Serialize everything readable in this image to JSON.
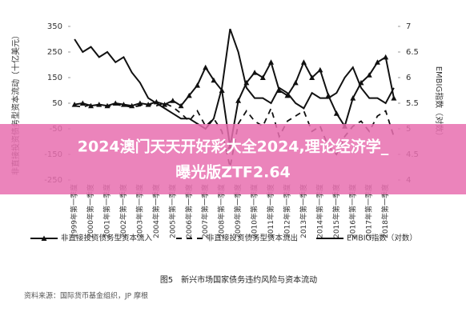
{
  "chart_data": {
    "type": "line",
    "y_label": "非直接投资债务型资本流动（十亿美元）",
    "y2_label": "EMBIG指数（对数）",
    "categories": [
      "1999年第一季度",
      null,
      "2000年第一季度",
      null,
      "2001年第一季度",
      null,
      "2002年第一季度",
      null,
      "2003年第一季度",
      null,
      "2004年第一季度",
      null,
      "2005年第一季度",
      null,
      "2006年第一季度",
      null,
      "2007年第一季度",
      null,
      "2008年第一季度",
      null,
      "2009年第一季度",
      null,
      "2010年第一季度",
      null,
      "2011年第一季度",
      null,
      "2012年第一季度",
      null,
      "2013年第一季度",
      null,
      "2014年第一季度",
      null,
      "2015年第一季度",
      null,
      "2016年第一季度",
      null,
      "2017年第一季度",
      null,
      "2018年第一季度",
      null
    ],
    "ylim": [
      -250,
      350
    ],
    "yticks": [
      -250,
      -150,
      -50,
      50,
      150,
      250,
      350
    ],
    "y2lim": [
      4,
      7
    ],
    "y2ticks": [
      4,
      4.5,
      5,
      5.5,
      6,
      6.5,
      7
    ],
    "legend": "bottom",
    "series": [
      {
        "name": "非直接投资债务型资本流入",
        "color": "#111111",
        "marker": "triangle",
        "values": [
          45,
          50,
          40,
          45,
          40,
          50,
          45,
          40,
          50,
          45,
          55,
          45,
          60,
          40,
          80,
          120,
          190,
          140,
          100,
          -120,
          60,
          130,
          170,
          150,
          210,
          100,
          80,
          130,
          210,
          150,
          180,
          80,
          10,
          -40,
          70,
          130,
          160,
          210,
          230,
          70
        ]
      },
      {
        "name": "非直接投资债务型资本流出",
        "color": "#111111",
        "dash": true,
        "values": [
          40,
          35,
          45,
          40,
          35,
          45,
          40,
          35,
          40,
          45,
          40,
          50,
          35,
          10,
          -20,
          20,
          -40,
          -10,
          -60,
          -200,
          -30,
          20,
          -20,
          -40,
          30,
          -80,
          -20,
          0,
          20,
          -60,
          -40,
          -120,
          -150,
          -80,
          -40,
          -20,
          -60,
          0,
          20,
          -80
        ]
      },
      {
        "name": "EMBIG指数（对数）",
        "color": "#111111",
        "axis": "y2",
        "values": [
          6.75,
          6.5,
          6.6,
          6.4,
          6.5,
          6.3,
          6.4,
          6.1,
          5.9,
          5.6,
          5.5,
          5.4,
          5.3,
          5.2,
          5.2,
          5.1,
          5.0,
          5.2,
          5.8,
          6.95,
          6.5,
          5.8,
          5.6,
          5.6,
          5.5,
          5.8,
          5.7,
          5.5,
          5.4,
          5.7,
          5.6,
          5.6,
          5.7,
          6.0,
          6.2,
          5.8,
          5.6,
          5.6,
          5.5,
          5.8
        ]
      }
    ]
  },
  "caption": "图5　新兴市场国家债务违约风险与资本流动",
  "source": "资料来源：国际货币基金组织，JP 摩根",
  "overlay": {
    "lines": [
      "2024澳门天天开好彩大全2024,理论经济学_",
      "曝光版ZTF2.64"
    ]
  }
}
